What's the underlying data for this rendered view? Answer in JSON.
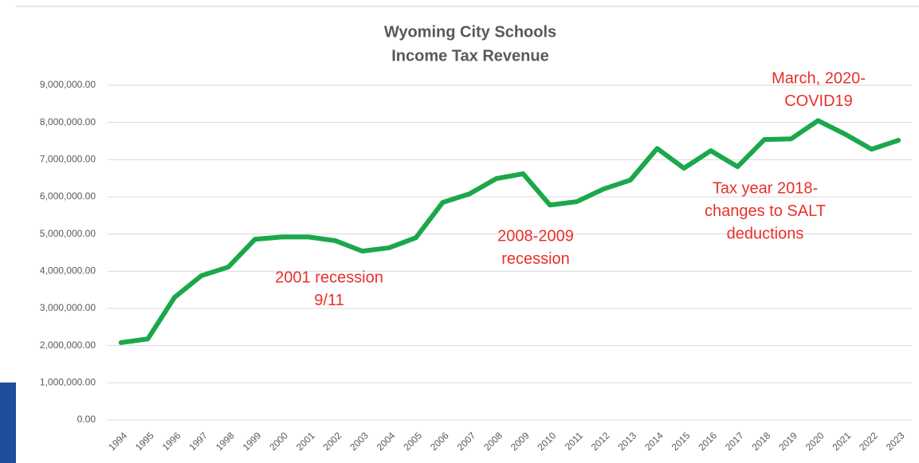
{
  "chart_data": {
    "type": "line",
    "title": [
      "Wyoming City Schools",
      "Income Tax Revenue"
    ],
    "categories": [
      "1994",
      "1995",
      "1996",
      "1997",
      "1998",
      "1999",
      "2000",
      "2001",
      "2002",
      "2003",
      "2004",
      "2005",
      "2006",
      "2007",
      "2008",
      "2009",
      "2010",
      "2011",
      "2012",
      "2013",
      "2014",
      "2015",
      "2016",
      "2017",
      "2018",
      "2019",
      "2020",
      "2021",
      "2022",
      "2023"
    ],
    "series": [
      {
        "color": "#1aa84a",
        "values": [
          2080000,
          2180000,
          3300000,
          3880000,
          4110000,
          4860000,
          4920000,
          4920000,
          4820000,
          4540000,
          4630000,
          4900000,
          5850000,
          6080000,
          6490000,
          6620000,
          5780000,
          5870000,
          6210000,
          6450000,
          7300000,
          6770000,
          7240000,
          6810000,
          7540000,
          7560000,
          8050000,
          7690000,
          7280000,
          7520000
        ]
      }
    ],
    "ylim": [
      0,
      9000000
    ],
    "yticks": [
      {
        "value": 0,
        "label": "0.00"
      },
      {
        "value": 1000000,
        "label": "1,000,000.00"
      },
      {
        "value": 2000000,
        "label": "2,000,000.00"
      },
      {
        "value": 3000000,
        "label": "3,000,000.00"
      },
      {
        "value": 4000000,
        "label": "4,000,000.00"
      },
      {
        "value": 5000000,
        "label": "5,000,000.00"
      },
      {
        "value": 6000000,
        "label": "6,000,000.00"
      },
      {
        "value": 7000000,
        "label": "7,000,000.00"
      },
      {
        "value": 8000000,
        "label": "8,000,000.00"
      },
      {
        "value": 9000000,
        "label": "9,000,000.00"
      }
    ],
    "grid": true,
    "annotations": [
      [
        "2001 recession",
        "9/11"
      ],
      [
        "2008-2009",
        "recession"
      ],
      [
        "Tax year 2018-",
        "changes to SALT",
        "deductions"
      ],
      [
        "March, 2020-",
        "COVID19"
      ]
    ]
  }
}
